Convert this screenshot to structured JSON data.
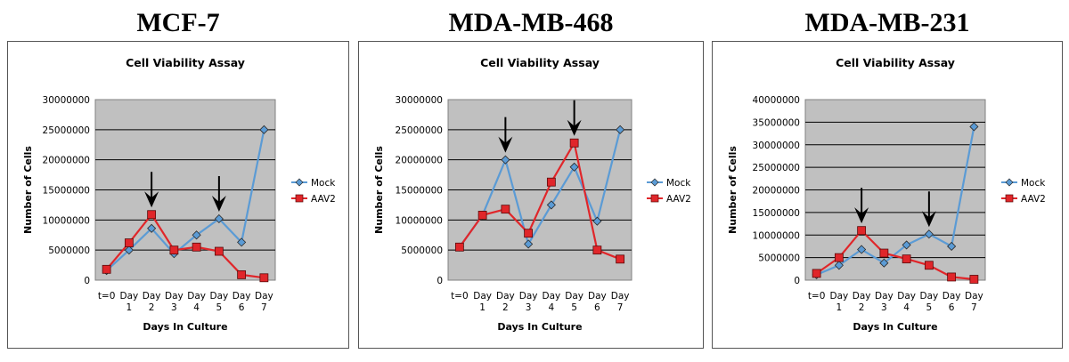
{
  "chart_data": [
    {
      "type": "line",
      "heading": "MCF-7",
      "title": "Cell Viability Assay",
      "xlabel": "Days In Culture",
      "ylabel": "Number of Cells",
      "categories": [
        [
          "t=0"
        ],
        [
          "Day",
          "1"
        ],
        [
          "Day",
          "2"
        ],
        [
          "Day",
          "3"
        ],
        [
          "Day",
          "4"
        ],
        [
          "Day",
          "5"
        ],
        [
          "Day",
          "6"
        ],
        [
          "Day",
          "7"
        ]
      ],
      "ylim": [
        0,
        30000000
      ],
      "ystep": 5000000,
      "grid": true,
      "legend_position": "right",
      "series": [
        {
          "name": "Mock",
          "color": "#5b9bd5",
          "values": [
            1600000,
            5000000,
            8600000,
            4400000,
            7500000,
            10200000,
            6300000,
            25000000
          ]
        },
        {
          "name": "AAV2",
          "color": "#e0262a",
          "values": [
            1800000,
            6200000,
            10900000,
            5000000,
            5500000,
            4800000,
            900000,
            400000
          ]
        }
      ],
      "arrows_at": [
        2,
        5
      ]
    },
    {
      "type": "line",
      "heading": "MDA-MB-468",
      "title": "Cell Viability Assay",
      "xlabel": "Days In Culture",
      "ylabel": "Number of Cells",
      "categories": [
        [
          "t=0"
        ],
        [
          "Day",
          "1"
        ],
        [
          "Day",
          "2"
        ],
        [
          "Day",
          "3"
        ],
        [
          "Day",
          "4"
        ],
        [
          "Day",
          "5"
        ],
        [
          "Day",
          "6"
        ],
        [
          "Day",
          "7"
        ]
      ],
      "ylim": [
        0,
        30000000
      ],
      "ystep": 5000000,
      "grid": true,
      "legend_position": "right",
      "series": [
        {
          "name": "Mock",
          "color": "#5b9bd5",
          "values": [
            5500000,
            10800000,
            20000000,
            6000000,
            12500000,
            18800000,
            9800000,
            25000000
          ]
        },
        {
          "name": "AAV2",
          "color": "#e0262a",
          "values": [
            5500000,
            10800000,
            11800000,
            7800000,
            16300000,
            22800000,
            5000000,
            3500000
          ]
        }
      ],
      "arrows_at": [
        2,
        5
      ]
    },
    {
      "type": "line",
      "heading": "MDA-MB-231",
      "title": "Cell Viability Assay",
      "xlabel": "Days In Culture",
      "ylabel": "Number of Cells",
      "categories": [
        [
          "t=0"
        ],
        [
          "Day",
          "1"
        ],
        [
          "Day",
          "2"
        ],
        [
          "Day",
          "3"
        ],
        [
          "Day",
          "4"
        ],
        [
          "Day",
          "5"
        ],
        [
          "Day",
          "6"
        ],
        [
          "Day",
          "7"
        ]
      ],
      "ylim": [
        0,
        40000000
      ],
      "ystep": 5000000,
      "grid": true,
      "legend_position": "right",
      "series": [
        {
          "name": "Mock",
          "color": "#5b9bd5",
          "values": [
            1200000,
            3300000,
            6800000,
            3800000,
            7800000,
            10200000,
            7500000,
            34000000
          ]
        },
        {
          "name": "AAV2",
          "color": "#e0262a",
          "values": [
            1500000,
            5000000,
            11000000,
            6000000,
            4700000,
            3300000,
            700000,
            200000
          ]
        }
      ],
      "arrows_at": [
        2,
        5
      ]
    }
  ]
}
